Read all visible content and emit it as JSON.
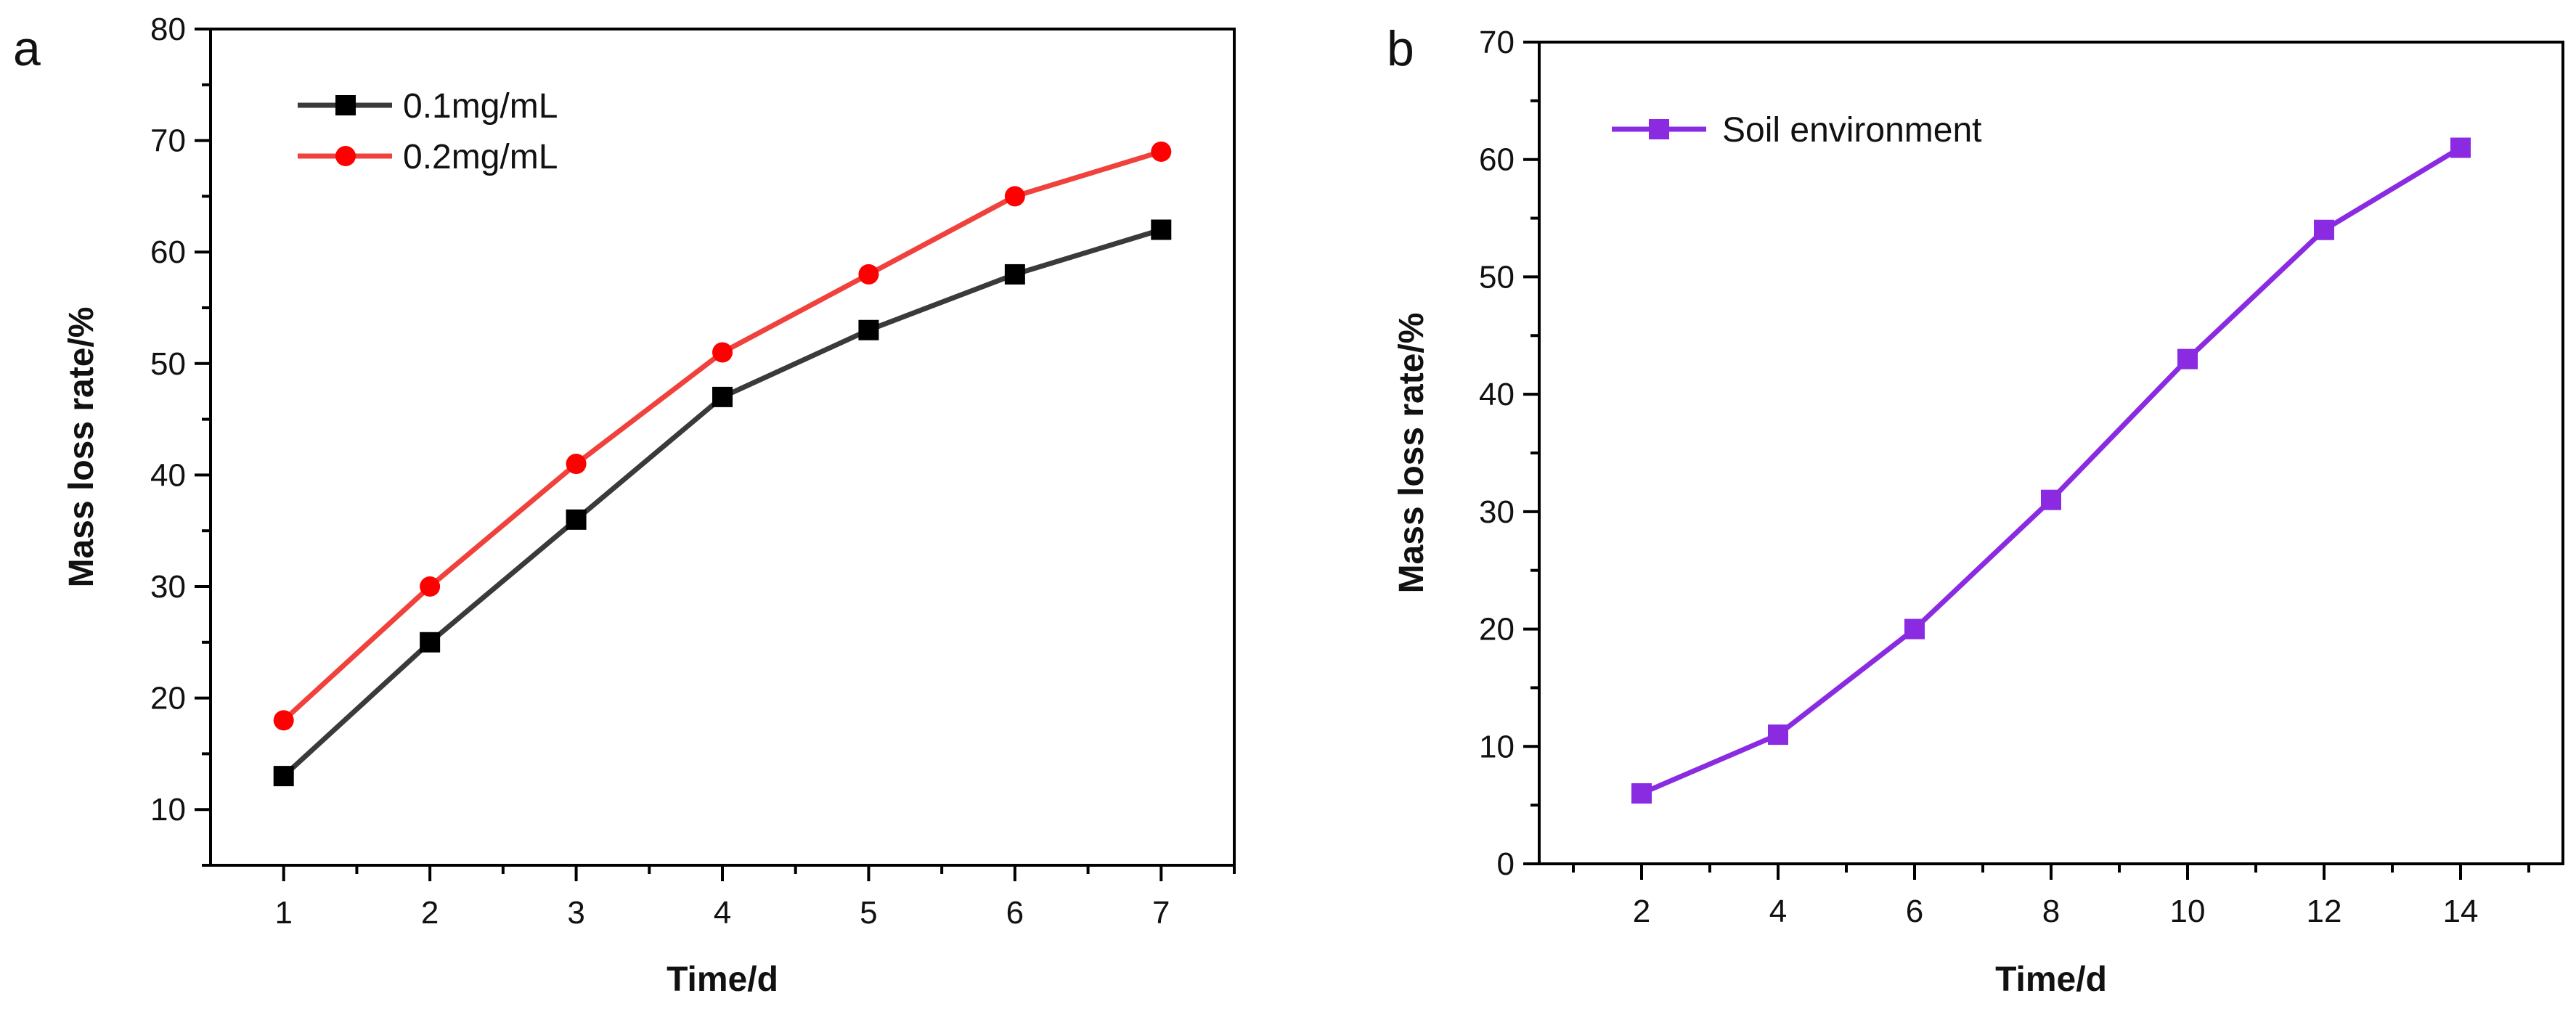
{
  "chart_data": [
    {
      "panel": "a",
      "type": "line",
      "xlabel": "Time/d",
      "ylabel": "Mass loss rate/%",
      "categories": [
        1,
        2,
        3,
        4,
        5,
        6,
        7
      ],
      "x_ticks": [
        "1",
        "2",
        "3",
        "4",
        "5",
        "6",
        "7"
      ],
      "xlim": [
        0.5,
        7.5
      ],
      "ylim": [
        5,
        80
      ],
      "y_ticks": [
        10,
        20,
        30,
        40,
        50,
        60,
        70,
        80
      ],
      "legend_position": "top-left",
      "series": [
        {
          "name": "0.1mg/mL",
          "color": "#3a3a3a",
          "marker_color": "#000000",
          "marker": "square",
          "values": [
            13,
            25,
            36,
            47,
            53,
            58,
            62
          ]
        },
        {
          "name": "0.2mg/mL",
          "color": "#f0413c",
          "marker_color": "#ff0000",
          "marker": "circle",
          "values": [
            18,
            30,
            41,
            51,
            58,
            65,
            69
          ]
        }
      ]
    },
    {
      "panel": "b",
      "type": "line",
      "xlabel": "Time/d",
      "ylabel": "Mass loss rate/%",
      "categories": [
        2,
        4,
        6,
        8,
        10,
        12,
        14
      ],
      "x_ticks": [
        "2",
        "4",
        "6",
        "8",
        "10",
        "12",
        "14"
      ],
      "xlim": [
        0.5,
        15.5
      ],
      "ylim": [
        0,
        70
      ],
      "y_ticks": [
        0,
        10,
        20,
        30,
        40,
        50,
        60,
        70
      ],
      "legend_position": "top-left",
      "series": [
        {
          "name": "Soil environment",
          "color": "#8a2be2",
          "marker_color": "#8a2be2",
          "marker": "square",
          "values": [
            6,
            11,
            20,
            31,
            43,
            54,
            61
          ]
        }
      ]
    }
  ]
}
